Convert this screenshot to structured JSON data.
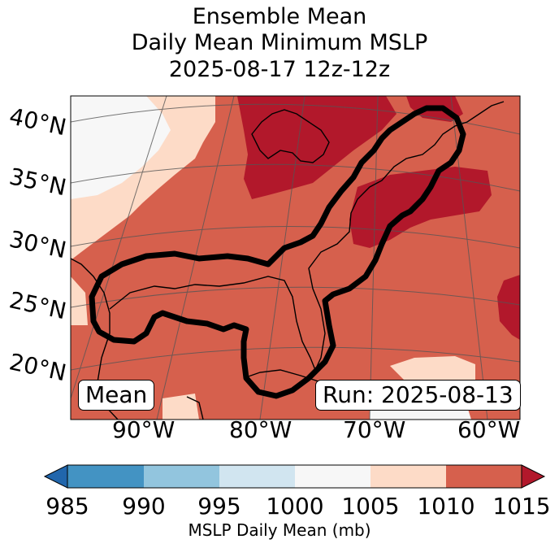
{
  "title": {
    "line1": "Ensemble Mean",
    "line2": "Daily Mean Minimum MSLP",
    "line3": "2025-08-17 12z-12z"
  },
  "map": {
    "lat_labels": [
      "40°N",
      "35°N",
      "30°N",
      "25°N",
      "20°N"
    ],
    "lon_labels": [
      "90°W",
      "80°W",
      "70°W",
      "60°W"
    ],
    "annotation_left": "Mean",
    "annotation_right": "Run: 2025-08-13",
    "contour": "black outline of area of interest along US East Coast and Gulf of Mexico"
  },
  "colorbar": {
    "ticks": [
      "985",
      "990",
      "995",
      "1000",
      "1005",
      "1010",
      "1015"
    ],
    "label": "MSLP Daily Mean (mb)",
    "colors": [
      "#2166ac",
      "#4393c3",
      "#92c5de",
      "#d1e5f0",
      "#f7f7f7",
      "#fddbc7",
      "#d6604d",
      "#b2182b"
    ]
  }
}
